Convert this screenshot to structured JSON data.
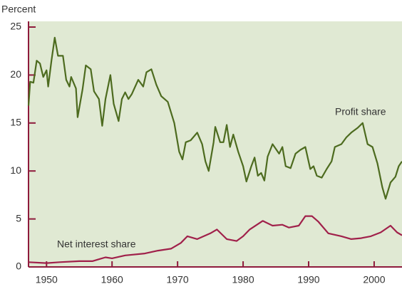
{
  "chart_data": {
    "type": "line",
    "y_label": "Percent",
    "annotations": [
      "Profit share",
      "Net interest share"
    ],
    "series": [
      {
        "name": "Profit share",
        "color": "#4d6b1f",
        "x": [
          1947.25,
          1947.5,
          1948,
          1948.5,
          1949,
          1949.5,
          1950,
          1950.25,
          1950.75,
          1951.25,
          1951.75,
          1952.5,
          1953,
          1953.5,
          1953.75,
          1954.5,
          1954.75,
          1955.5,
          1956,
          1956.75,
          1957.25,
          1958,
          1958.5,
          1959,
          1959.75,
          1960.25,
          1961,
          1961.5,
          1962,
          1962.5,
          1963,
          1964,
          1964.75,
          1965.25,
          1966,
          1966.75,
          1967.5,
          1968.5,
          1969.5,
          1970.25,
          1970.75,
          1971.25,
          1972,
          1973,
          1973.75,
          1974.25,
          1974.75,
          1975.5,
          1975.75,
          1976.5,
          1977,
          1977.5,
          1978,
          1978.5,
          1979.25,
          1980,
          1980.5,
          1981.25,
          1981.75,
          1982.25,
          1982.75,
          1983.25,
          1983.75,
          1984.5,
          1985.5,
          1986,
          1986.5,
          1987.25,
          1988,
          1988.75,
          1989.5,
          1990.25,
          1990.75,
          1991.25,
          1992,
          1992.75,
          1993.5,
          1994,
          1995,
          1995.75,
          1996.5,
          1997.5,
          1998.25,
          1999,
          1999.75,
          2000.5,
          2001.25,
          2001.75,
          2002.5,
          2003.25,
          2003.75,
          2004.25
        ],
        "values": [
          16.8,
          19.3,
          19.2,
          21.5,
          21.2,
          19.8,
          20.5,
          18.8,
          21.5,
          23.9,
          22.0,
          22.0,
          19.5,
          18.8,
          19.8,
          18.6,
          15.6,
          18.5,
          21.0,
          20.6,
          18.3,
          17.5,
          14.7,
          17.5,
          20.0,
          17.0,
          15.2,
          17.5,
          18.2,
          17.5,
          18.0,
          19.5,
          18.8,
          20.3,
          20.6,
          19.0,
          17.8,
          17.2,
          15.0,
          12.0,
          11.2,
          13.0,
          13.2,
          14.0,
          12.8,
          11.0,
          10.0,
          13.0,
          14.6,
          13.0,
          13.0,
          14.8,
          12.5,
          13.8,
          12.0,
          10.5,
          8.9,
          10.5,
          11.4,
          9.5,
          9.8,
          9.0,
          11.5,
          12.8,
          11.8,
          12.5,
          10.5,
          10.3,
          11.8,
          12.2,
          12.5,
          10.2,
          10.5,
          9.5,
          9.3,
          10.2,
          11.0,
          12.5,
          12.8,
          13.5,
          14.0,
          14.5,
          15.0,
          12.8,
          12.5,
          10.8,
          8.3,
          7.1,
          8.8,
          9.4,
          10.5,
          11.0
        ]
      },
      {
        "name": "Net interest share",
        "color": "#a0204a",
        "x": [
          1947.25,
          1950,
          1952,
          1955,
          1957,
          1958,
          1959,
          1960,
          1962,
          1965,
          1967,
          1969,
          1970.5,
          1971.5,
          1973,
          1975,
          1976,
          1977.5,
          1979,
          1980,
          1981,
          1983,
          1984.5,
          1986,
          1987,
          1988.5,
          1989.5,
          1990.5,
          1991.5,
          1993,
          1995,
          1996.5,
          1998,
          1999.5,
          2001,
          2002.5,
          2003.5,
          2004.25
        ],
        "values": [
          0.5,
          0.4,
          0.5,
          0.6,
          0.6,
          0.8,
          1.0,
          0.9,
          1.2,
          1.4,
          1.7,
          1.9,
          2.5,
          3.2,
          2.9,
          3.5,
          3.9,
          2.9,
          2.7,
          3.2,
          3.9,
          4.8,
          4.3,
          4.4,
          4.1,
          4.3,
          5.3,
          5.3,
          4.7,
          3.5,
          3.2,
          2.9,
          3.0,
          3.2,
          3.6,
          4.3,
          3.6,
          3.3
        ]
      }
    ],
    "xlim": [
      1947.25,
      2004.25
    ],
    "xticks": [
      1950,
      1960,
      1970,
      1980,
      1990,
      2000
    ],
    "ylim": [
      0,
      25
    ],
    "yticks": [
      0,
      5,
      10,
      15,
      20,
      25
    ],
    "background": "#e0e9d3",
    "axis_color": "#8e1b3c"
  }
}
